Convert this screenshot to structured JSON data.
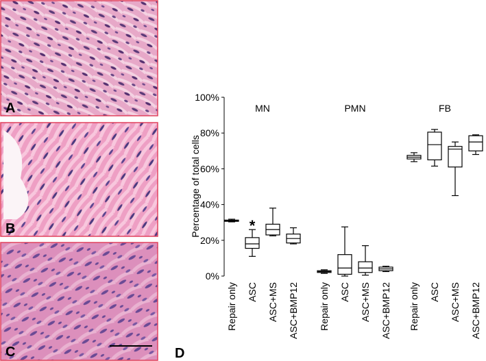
{
  "panels": {
    "labels": [
      "A",
      "B",
      "C",
      "D"
    ]
  },
  "chart_data": {
    "type": "box",
    "ylabel": "Percentage of total cells",
    "ylim": [
      0,
      100
    ],
    "yticks": [
      {
        "value": 0,
        "label": "0%"
      },
      {
        "value": 20,
        "label": "20%"
      },
      {
        "value": 40,
        "label": "40%"
      },
      {
        "value": 60,
        "label": "60%"
      },
      {
        "value": 80,
        "label": "80%"
      },
      {
        "value": 100,
        "label": "100%"
      }
    ],
    "categories": [
      "Repair only",
      "ASC",
      "ASC+MS",
      "ASC+BMP12"
    ],
    "annotation": "*",
    "groups": [
      {
        "name": "MN",
        "boxes": [
          {
            "min": 30.3,
            "q1": 30.6,
            "median": 31,
            "q3": 31.3,
            "max": 31.8
          },
          {
            "min": 11,
            "q1": 15.5,
            "median": 18,
            "q3": 21.5,
            "max": 26
          },
          {
            "min": 22.5,
            "q1": 23,
            "median": 26,
            "q3": 29,
            "max": 38
          },
          {
            "min": 18,
            "q1": 18.5,
            "median": 21,
            "q3": 23.5,
            "max": 27
          }
        ]
      },
      {
        "name": "PMN",
        "boxes": [
          {
            "min": 1.5,
            "q1": 2,
            "median": 2.5,
            "q3": 3,
            "max": 3.5
          },
          {
            "min": 0,
            "q1": 1,
            "median": 4.5,
            "q3": 12,
            "max": 27.5
          },
          {
            "min": 0.5,
            "q1": 2,
            "median": 4.5,
            "q3": 8,
            "max": 17
          },
          {
            "min": 2.5,
            "q1": 3,
            "median": 4,
            "q3": 5,
            "max": 5.5
          }
        ]
      },
      {
        "name": "FB",
        "boxes": [
          {
            "min": 64,
            "q1": 65.5,
            "median": 66.5,
            "q3": 67.5,
            "max": 69
          },
          {
            "min": 61.5,
            "q1": 65,
            "median": 73.5,
            "q3": 80.5,
            "max": 82
          },
          {
            "min": 45,
            "q1": 61,
            "median": 71,
            "q3": 72.5,
            "max": 75
          },
          {
            "min": 68,
            "q1": 70,
            "median": 75,
            "q3": 78.5,
            "max": 79
          }
        ]
      }
    ]
  }
}
